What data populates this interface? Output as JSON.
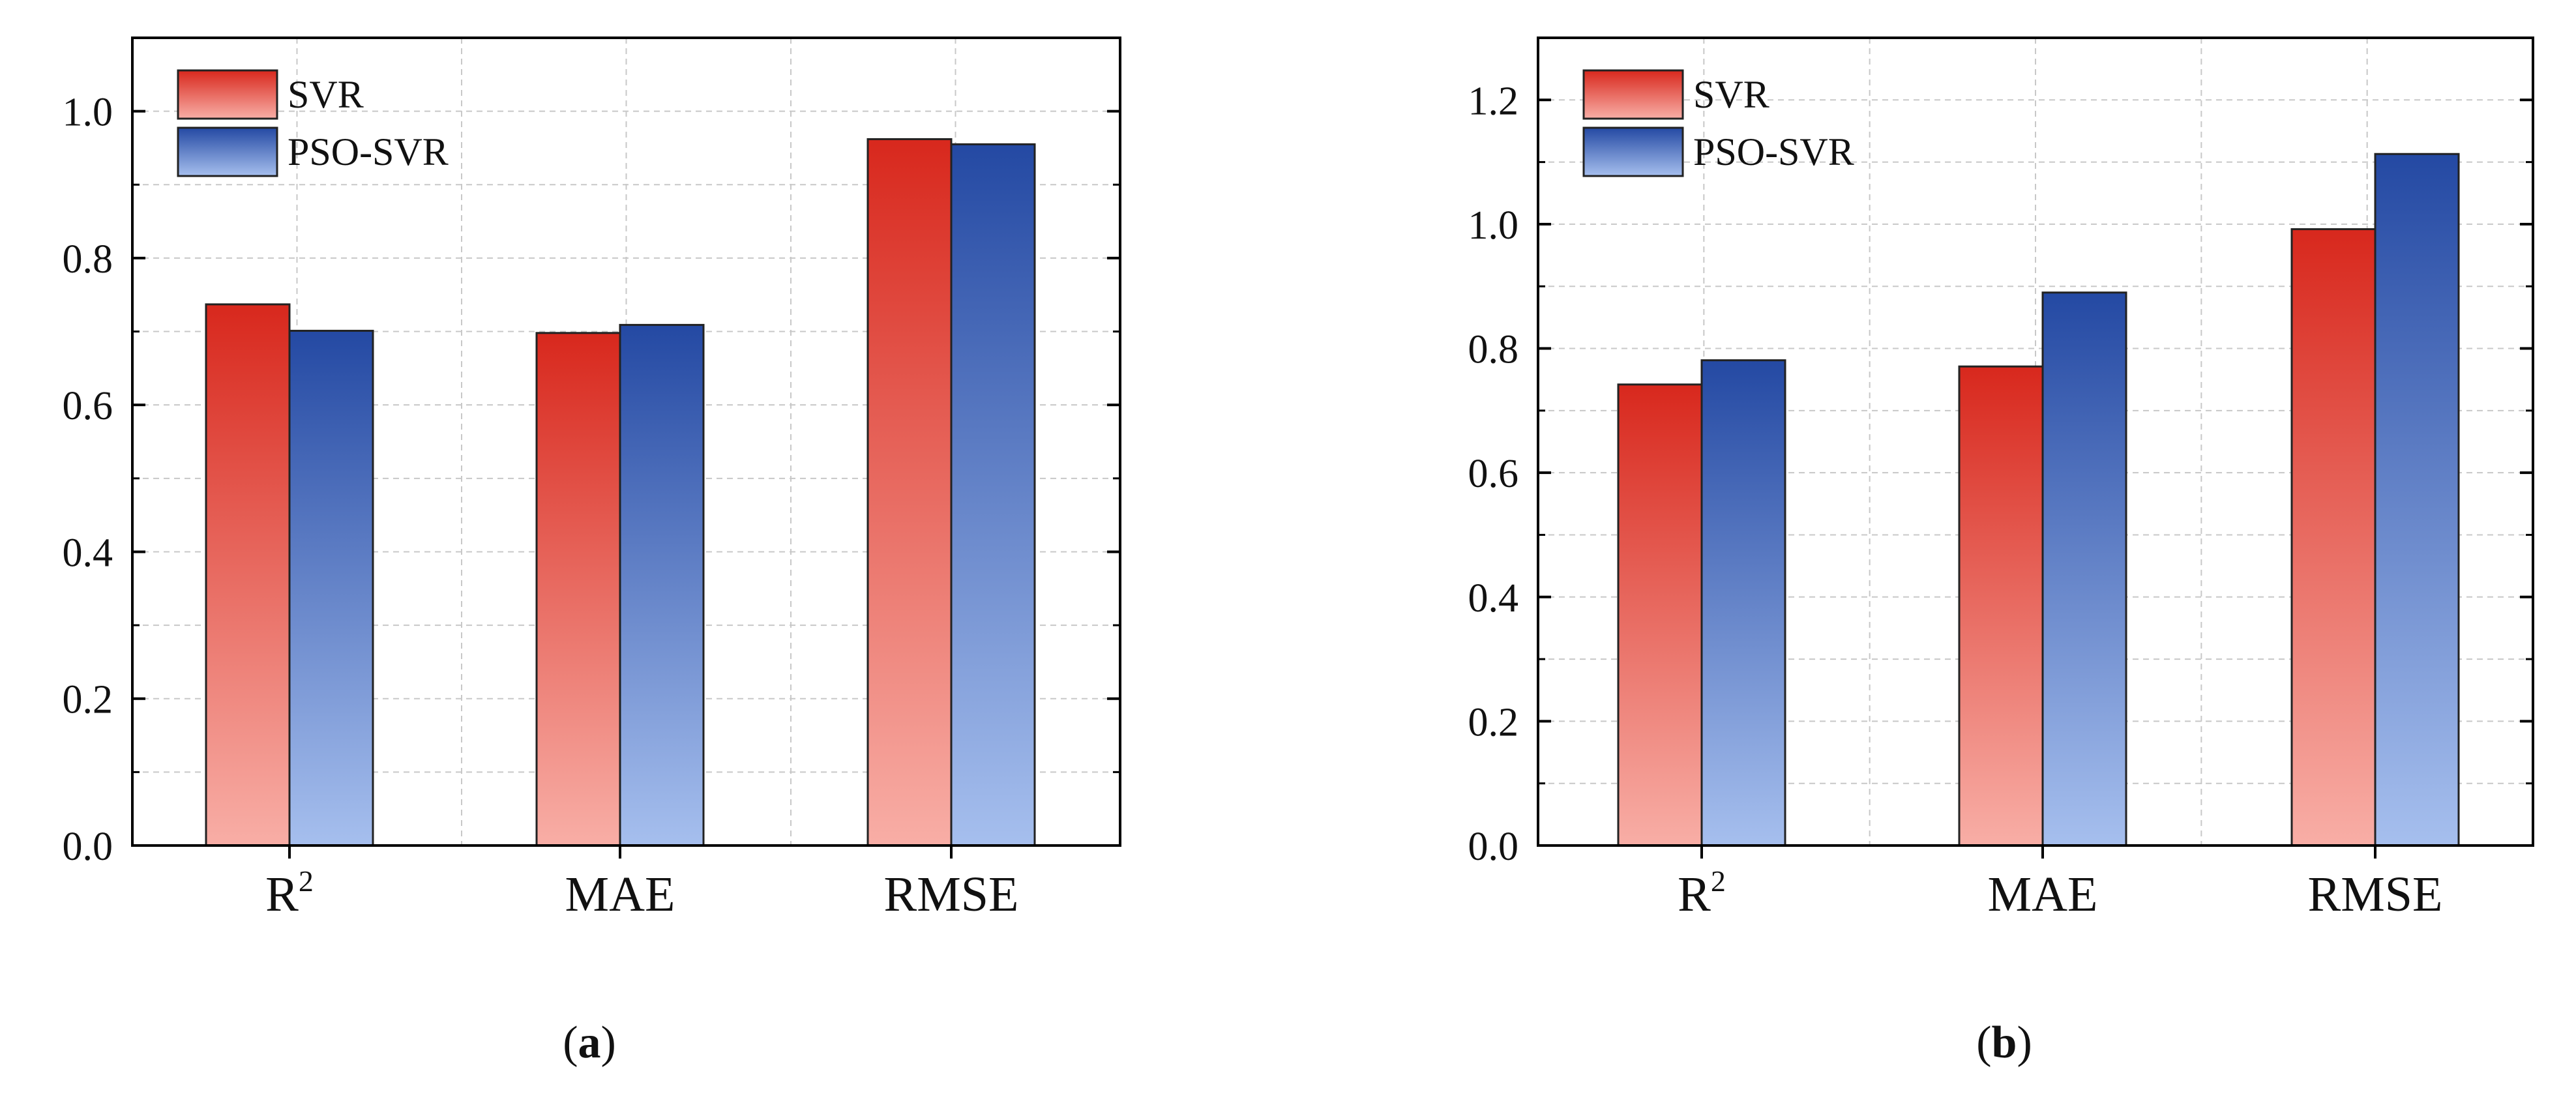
{
  "colors": {
    "svr_top": "#d8281d",
    "svr_bottom": "#f8aea6",
    "pso_top": "#2449a3",
    "pso_bottom": "#a6bfee",
    "grid": "#c8c8c8",
    "axis": "#000000"
  },
  "legend": {
    "svr": "SVR",
    "pso": "PSO-SVR"
  },
  "chart_data": [
    {
      "type": "bar",
      "panel": "a",
      "categories": [
        "R",
        "MAE",
        "RMSE"
      ],
      "category_superscripts": [
        "2",
        "",
        ""
      ],
      "series": [
        {
          "name": "SVR",
          "values": [
            0.737,
            0.698,
            0.962
          ]
        },
        {
          "name": "PSO-SVR",
          "values": [
            0.701,
            0.709,
            0.955
          ]
        }
      ],
      "ylim": [
        0,
        1.1
      ],
      "yticks": [
        0.0,
        0.2,
        0.4,
        0.6,
        0.8,
        1.0
      ],
      "ytick_labels": [
        "0.0",
        "0.2",
        "0.4",
        "0.6",
        "0.8",
        "1.0"
      ],
      "grid": true,
      "legend_position": "top-left"
    },
    {
      "type": "bar",
      "panel": "b",
      "categories": [
        "R",
        "MAE",
        "RMSE"
      ],
      "category_superscripts": [
        "2",
        "",
        ""
      ],
      "series": [
        {
          "name": "SVR",
          "values": [
            0.742,
            0.771,
            0.992
          ]
        },
        {
          "name": "PSO-SVR",
          "values": [
            0.781,
            0.89,
            1.113
          ]
        }
      ],
      "ylim": [
        0,
        1.3
      ],
      "yticks": [
        0.0,
        0.2,
        0.4,
        0.6,
        0.8,
        1.0,
        1.2
      ],
      "ytick_labels": [
        "0.0",
        "0.2",
        "0.4",
        "0.6",
        "0.8",
        "1.0",
        "1.2"
      ],
      "grid": true,
      "legend_position": "top-left"
    }
  ],
  "panel_labels": [
    {
      "open": "(",
      "letter": "a",
      "close": ")"
    },
    {
      "open": "(",
      "letter": "b",
      "close": ")"
    }
  ]
}
